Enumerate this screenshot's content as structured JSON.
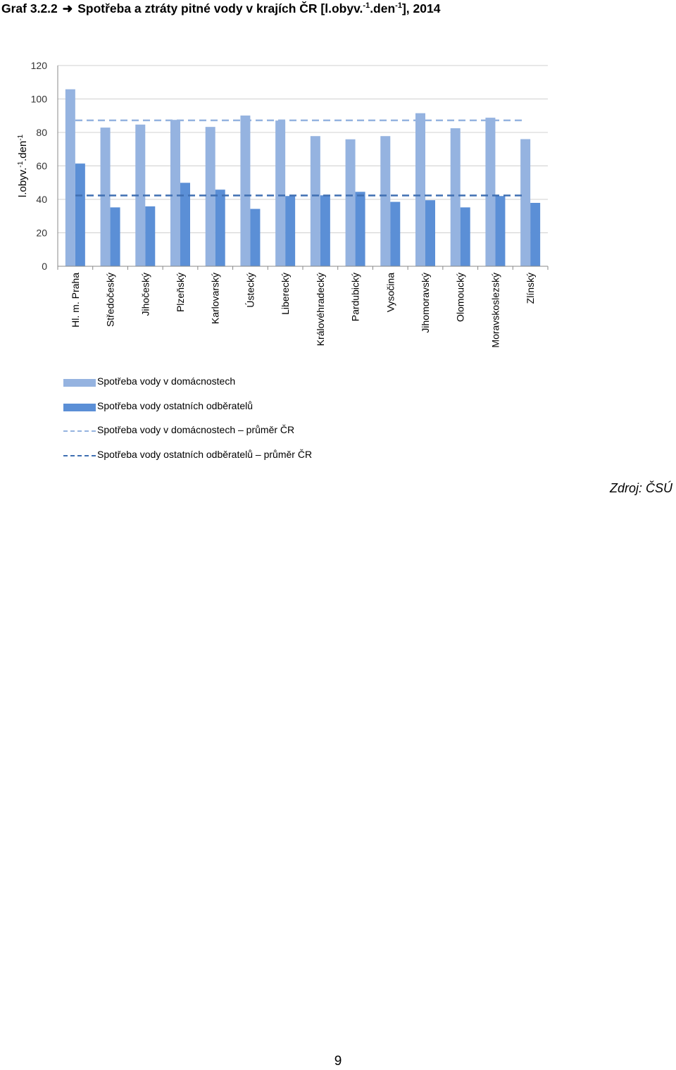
{
  "page": {
    "title_prefix": "Graf 3.2.2",
    "title_arrow": "➜",
    "title_main": "Spotřeba a ztráty pitné vody v krajích ČR [l.obyv.",
    "title_sup1": "-1",
    "title_mid": ".den",
    "title_sup2": "-1",
    "title_end": "], 2014",
    "source": "Zdroj: ČSÚ",
    "page_number": "9"
  },
  "chart_data": {
    "type": "bar",
    "title": "",
    "ylabel": "l.obyv.-1.den-1",
    "ylabel_parts": [
      "l.obyv.",
      "-1",
      ".den",
      "-1"
    ],
    "ylim": [
      0,
      120
    ],
    "yticks": [
      "0",
      "20",
      "40",
      "60",
      "80",
      "100",
      "120"
    ],
    "grid": true,
    "legend_position": "bottom-left",
    "categories": [
      "Hl. m. Praha",
      "Středočeský",
      "Jihočeský",
      "Plzeňský",
      "Karlovarský",
      "Ústecký",
      "Liberecký",
      "Královéhradecký",
      "Pardubický",
      "Vysočina",
      "Jihomoravský",
      "Olomoucký",
      "Moravskoslezský",
      "Zlínský"
    ],
    "series": [
      {
        "name": "Spotřeba vody v domácnostech",
        "type": "bar",
        "color": "#95b3e0",
        "values": [
          105.8,
          82.9,
          84.7,
          87.5,
          83.3,
          90.1,
          87.1,
          77.8,
          75.9,
          77.8,
          91.5,
          82.5,
          88.8,
          76.0
        ]
      },
      {
        "name": "Spotřeba vody ostatních odběratelů",
        "type": "bar",
        "color": "#5b8fd6",
        "values": [
          61.4,
          35.2,
          35.8,
          49.9,
          45.8,
          34.3,
          42.0,
          42.4,
          44.5,
          38.5,
          39.5,
          35.2,
          42.0,
          37.9
        ]
      },
      {
        "name": "Spotřeba vody v domácnostech – průměr ČR",
        "type": "line",
        "style": "dashed",
        "color": "#95b3e0",
        "value": 87.2
      },
      {
        "name": "Spotřeba vody ostatních odběratelů – průměr ČR",
        "type": "line",
        "style": "dashed",
        "color": "#3f6fb2",
        "value": 42.3
      }
    ]
  }
}
